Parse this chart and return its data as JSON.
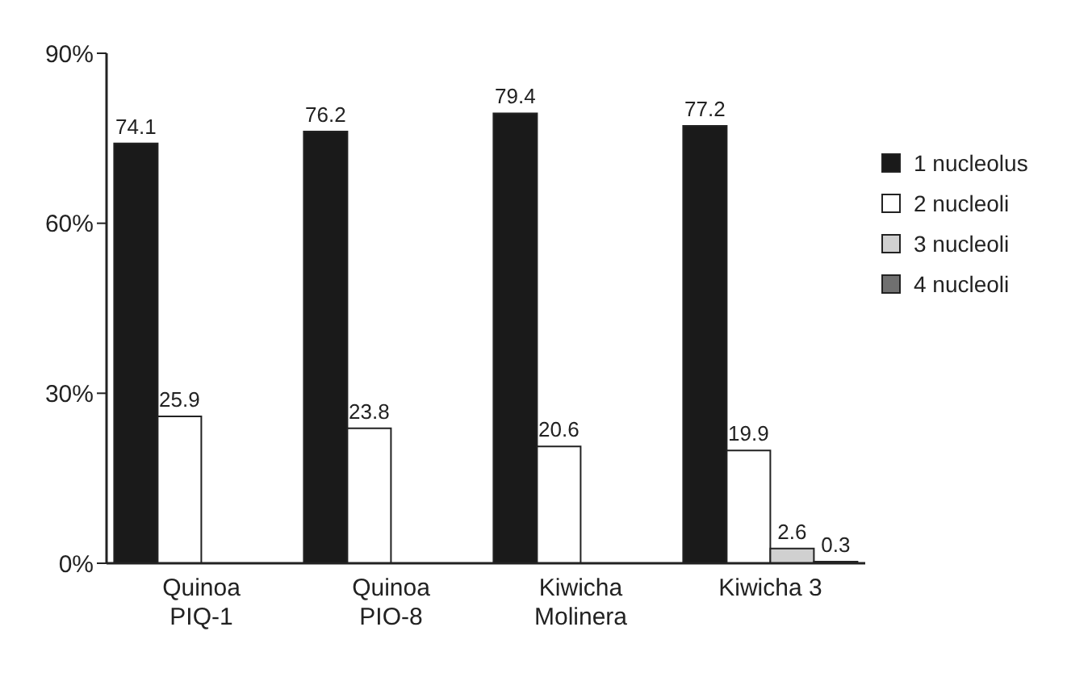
{
  "chart_data": {
    "type": "bar",
    "categories": [
      "Quinoa\nPIQ-1",
      "Quinoa\nPIO-8",
      "Kiwicha\nMolinera",
      "Kiwicha 3"
    ],
    "series": [
      {
        "name": "1 nucleolus",
        "color": "#1a1a1a",
        "values": [
          74.1,
          76.2,
          79.4,
          77.2
        ]
      },
      {
        "name": "2 nucleoli",
        "color": "#ffffff",
        "values": [
          25.9,
          23.8,
          20.6,
          19.9
        ]
      },
      {
        "name": "3 nucleoli",
        "color": "#d0d0d0",
        "values": [
          null,
          null,
          null,
          2.6
        ]
      },
      {
        "name": "4 nucleoli",
        "color": "#707070",
        "values": [
          null,
          null,
          null,
          0.3
        ]
      }
    ],
    "ylim": [
      0,
      90
    ],
    "yticks": [
      {
        "value": 0,
        "label": "0%"
      },
      {
        "value": 30,
        "label": "30%"
      },
      {
        "value": 60,
        "label": "60%"
      },
      {
        "value": 90,
        "label": "90%"
      }
    ],
    "data_labels": true,
    "legend": "right",
    "grid": false
  }
}
